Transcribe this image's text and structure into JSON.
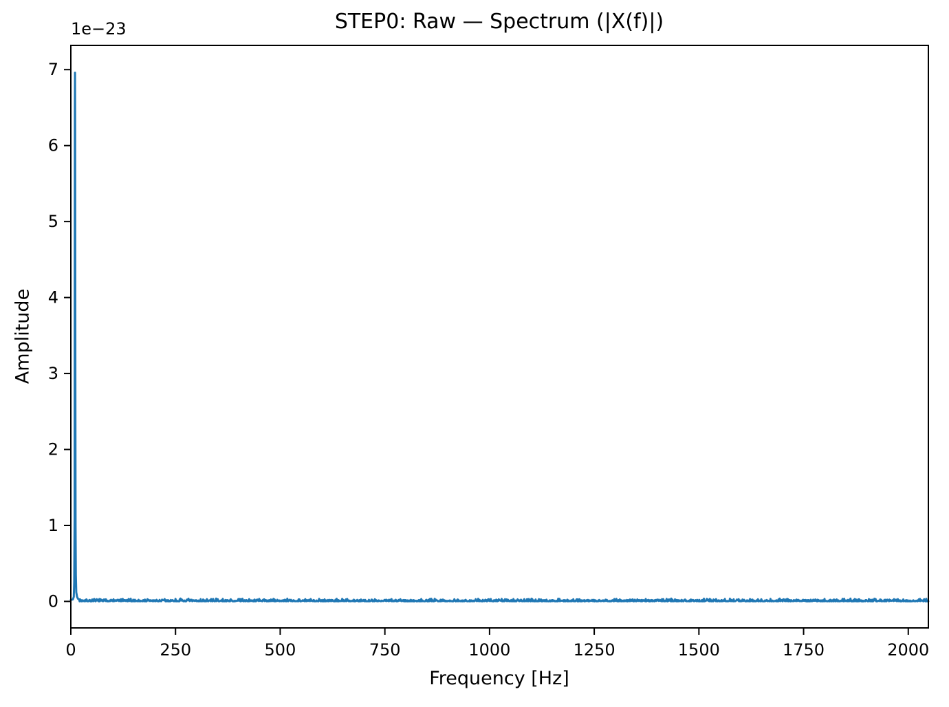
{
  "page": {
    "background": "#ffffff"
  },
  "chart_data": {
    "type": "line",
    "title": "STEP0: Raw — Spectrum (|X(f)|)",
    "xlabel": "Frequency [Hz]",
    "ylabel": "Amplitude",
    "y_offset_text": "1e−23",
    "y_unit_scale": 1e-23,
    "xlim": [
      0,
      2048
    ],
    "ylim": [
      -0.349,
      7.319
    ],
    "xticks": [
      0,
      250,
      500,
      750,
      1000,
      1250,
      1500,
      1750,
      2000
    ],
    "yticks": [
      0,
      1,
      2,
      3,
      4,
      5,
      6,
      7
    ],
    "grid": false,
    "legend": null,
    "line_color": "#1f77b4",
    "line_width": 3,
    "axis_color": "#000000",
    "series": [
      {
        "name": "|X(f)|",
        "peak": {
          "frequency_hz": 10,
          "amplitude_x1e23": 6.96
        },
        "peak_profile_x1e23": [
          [
            0,
            0.02
          ],
          [
            5,
            0.025
          ],
          [
            7,
            0.06
          ],
          [
            8,
            0.25
          ],
          [
            9,
            1.1
          ],
          [
            9.4,
            4.2
          ],
          [
            9.7,
            6.5
          ],
          [
            10,
            6.96
          ],
          [
            10.4,
            6.2
          ],
          [
            10.8,
            3.0
          ],
          [
            11.3,
            1.0
          ],
          [
            12,
            0.35
          ],
          [
            13,
            0.12
          ],
          [
            15,
            0.06
          ],
          [
            17,
            0.035
          ],
          [
            20,
            0.025
          ]
        ],
        "noise_floor_x1e23": {
          "from_hz": 20,
          "to_hz": 2048,
          "step_hz": 1,
          "max": 0.04,
          "seed": 7
        }
      }
    ]
  }
}
